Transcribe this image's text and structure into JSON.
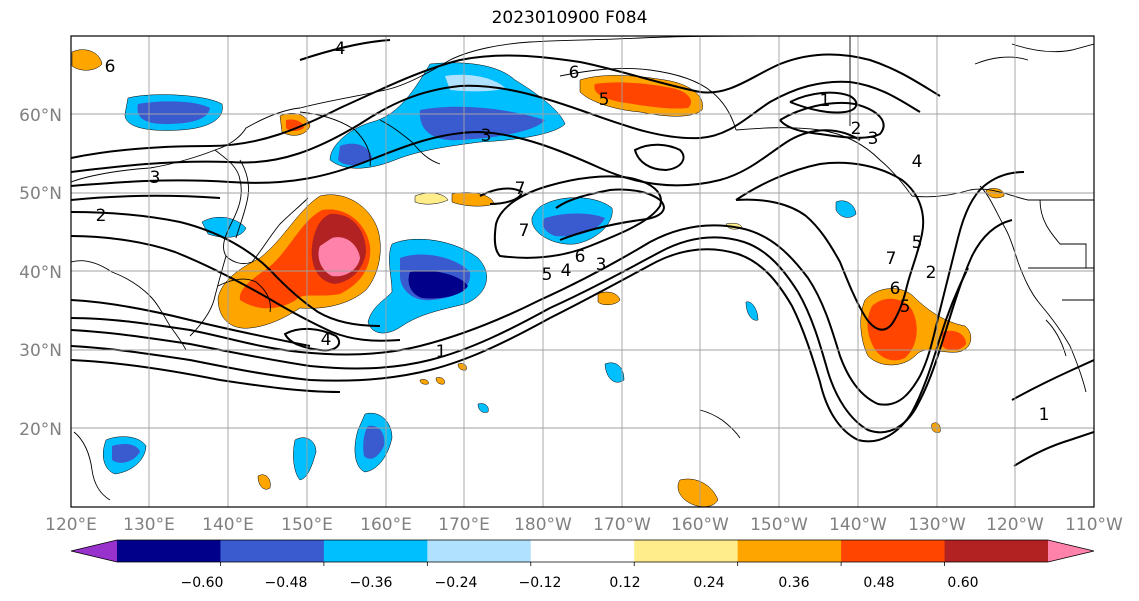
{
  "title": "2023010900 F084",
  "map": {
    "lon_range": [
      "120°E",
      "110°W"
    ],
    "lat_range": [
      "10°N",
      "70°N"
    ],
    "x_tick_labels": [
      "120°E",
      "130°E",
      "140°E",
      "150°E",
      "160°E",
      "170°E",
      "180°W",
      "170°W",
      "160°W",
      "150°W",
      "140°W",
      "130°W",
      "120°W",
      "110°W"
    ],
    "y_tick_labels": [
      "20°N",
      "30°N",
      "40°N",
      "50°N",
      "60°N"
    ],
    "grid": true
  },
  "contour_labels": [
    {
      "id": "c1",
      "text": "6"
    },
    {
      "id": "c2",
      "text": "4"
    },
    {
      "id": "c3",
      "text": "3"
    },
    {
      "id": "c4",
      "text": "2"
    },
    {
      "id": "c5",
      "text": "6"
    },
    {
      "id": "c6",
      "text": "5"
    },
    {
      "id": "c7",
      "text": "3"
    },
    {
      "id": "c8",
      "text": "1"
    },
    {
      "id": "c9",
      "text": "2"
    },
    {
      "id": "c10",
      "text": "3"
    },
    {
      "id": "c11",
      "text": "4"
    },
    {
      "id": "c12",
      "text": "7"
    },
    {
      "id": "c13",
      "text": "7"
    },
    {
      "id": "c14",
      "text": "6"
    },
    {
      "id": "c15",
      "text": "5"
    },
    {
      "id": "c16",
      "text": "4"
    },
    {
      "id": "c17",
      "text": "3"
    },
    {
      "id": "c18",
      "text": "4"
    },
    {
      "id": "c19",
      "text": "1"
    },
    {
      "id": "c20",
      "text": "7"
    },
    {
      "id": "c21",
      "text": "5"
    },
    {
      "id": "c22",
      "text": "2"
    },
    {
      "id": "c23",
      "text": "6"
    },
    {
      "id": "c24",
      "text": "5"
    },
    {
      "id": "c25",
      "text": "1"
    }
  ],
  "colorbar": {
    "colors": [
      "#9932cc",
      "#00008b",
      "#3a5bd0",
      "#00bfff",
      "#b0e2ff",
      "#ffffff",
      "#ffec8b",
      "#ffa500",
      "#ff4500",
      "#b22222",
      "#ff82ab"
    ],
    "tick_labels": [
      "−0.60",
      "−0.48",
      "−0.36",
      "−0.24",
      "−0.12",
      "0.12",
      "0.24",
      "0.36",
      "0.48",
      "0.60"
    ],
    "extend": "both"
  }
}
